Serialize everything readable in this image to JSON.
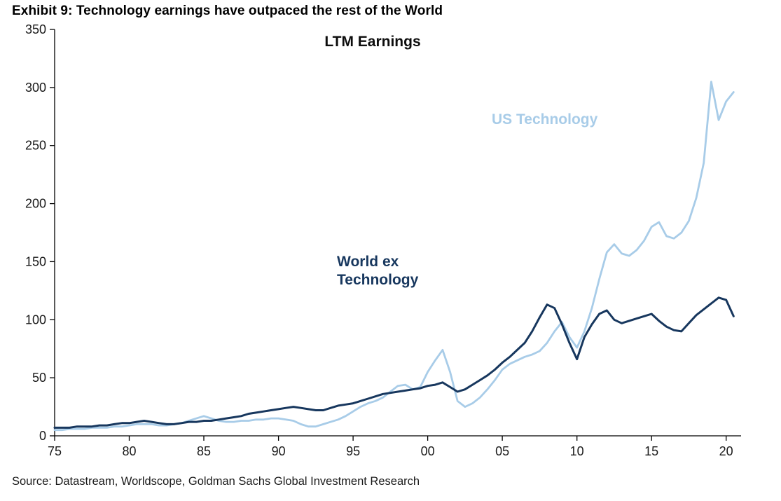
{
  "page": {
    "exhibit_title": "Exhibit 9: Technology earnings have outpaced the rest of the World",
    "source": "Source: Datastream, Worldscope, Goldman Sachs Global Investment Research"
  },
  "chart_data": {
    "type": "line",
    "title": "LTM Earnings",
    "xlabel": "",
    "ylabel": "",
    "xlim": [
      1975,
      2021
    ],
    "ylim": [
      0,
      350
    ],
    "grid": false,
    "legend_position": "inline-series-labels",
    "x_ticks": [
      1975,
      1980,
      1985,
      1990,
      1995,
      2000,
      2005,
      2010,
      2015,
      2020
    ],
    "x_tick_labels": [
      "75",
      "80",
      "85",
      "90",
      "95",
      "00",
      "05",
      "10",
      "15",
      "20"
    ],
    "y_ticks": [
      0,
      50,
      100,
      150,
      200,
      250,
      300,
      350
    ],
    "annotations": [
      {
        "text": "US Technology",
        "x": 2007.2,
        "y": 272,
        "color": "#a8cce8",
        "bold": true
      },
      {
        "text": "World ex\nTechnology",
        "x": 1994.0,
        "y": 148,
        "color": "#17375e",
        "bold": true
      }
    ],
    "x": [
      1975,
      1975.5,
      1976,
      1976.5,
      1977,
      1977.5,
      1978,
      1978.5,
      1979,
      1979.5,
      1980,
      1980.5,
      1981,
      1981.5,
      1982,
      1982.5,
      1983,
      1983.5,
      1984,
      1984.5,
      1985,
      1985.5,
      1986,
      1986.5,
      1987,
      1987.5,
      1988,
      1988.5,
      1989,
      1989.5,
      1990,
      1990.5,
      1991,
      1991.5,
      1992,
      1992.5,
      1993,
      1993.5,
      1994,
      1994.5,
      1995,
      1995.5,
      1996,
      1996.5,
      1997,
      1997.5,
      1998,
      1998.5,
      1999,
      1999.5,
      2000,
      2000.5,
      2001,
      2001.5,
      2002,
      2002.5,
      2003,
      2003.5,
      2004,
      2004.5,
      2005,
      2005.5,
      2006,
      2006.5,
      2007,
      2007.5,
      2008,
      2008.5,
      2009,
      2009.5,
      2010,
      2010.5,
      2011,
      2011.5,
      2012,
      2012.5,
      2013,
      2013.5,
      2014,
      2014.5,
      2015,
      2015.5,
      2016,
      2016.5,
      2017,
      2017.5,
      2018,
      2018.5,
      2019,
      2019.5,
      2020,
      2020.5
    ],
    "series": [
      {
        "name": "US Technology",
        "color": "#a8cce8",
        "width": 2.8,
        "values": [
          5,
          5,
          6,
          6,
          6,
          7,
          7,
          7,
          8,
          8,
          9,
          10,
          10,
          10,
          9,
          9,
          10,
          11,
          13,
          15,
          17,
          15,
          13,
          12,
          12,
          13,
          13,
          14,
          14,
          15,
          15,
          14,
          13,
          10,
          8,
          8,
          10,
          12,
          14,
          17,
          21,
          25,
          28,
          30,
          33,
          38,
          43,
          44,
          40,
          42,
          55,
          65,
          74,
          55,
          30,
          25,
          28,
          33,
          40,
          48,
          57,
          62,
          65,
          68,
          70,
          73,
          80,
          90,
          98,
          85,
          76,
          90,
          110,
          135,
          158,
          165,
          157,
          155,
          160,
          168,
          180,
          184,
          172,
          170,
          175,
          185,
          205,
          235,
          305,
          272,
          288,
          296
        ]
      },
      {
        "name": "World ex Technology",
        "color": "#17375e",
        "width": 3.0,
        "values": [
          7,
          7,
          7,
          8,
          8,
          8,
          9,
          9,
          10,
          11,
          11,
          12,
          13,
          12,
          11,
          10,
          10,
          11,
          12,
          12,
          13,
          13,
          14,
          15,
          16,
          17,
          19,
          20,
          21,
          22,
          23,
          24,
          25,
          24,
          23,
          22,
          22,
          24,
          26,
          27,
          28,
          30,
          32,
          34,
          36,
          37,
          38,
          39,
          40,
          41,
          43,
          44,
          46,
          42,
          38,
          40,
          44,
          48,
          52,
          57,
          63,
          68,
          74,
          80,
          90,
          102,
          113,
          110,
          96,
          80,
          66,
          85,
          96,
          105,
          108,
          100,
          97,
          99,
          101,
          103,
          105,
          99,
          94,
          91,
          90,
          97,
          104,
          109,
          114,
          119,
          117,
          103
        ]
      }
    ]
  }
}
